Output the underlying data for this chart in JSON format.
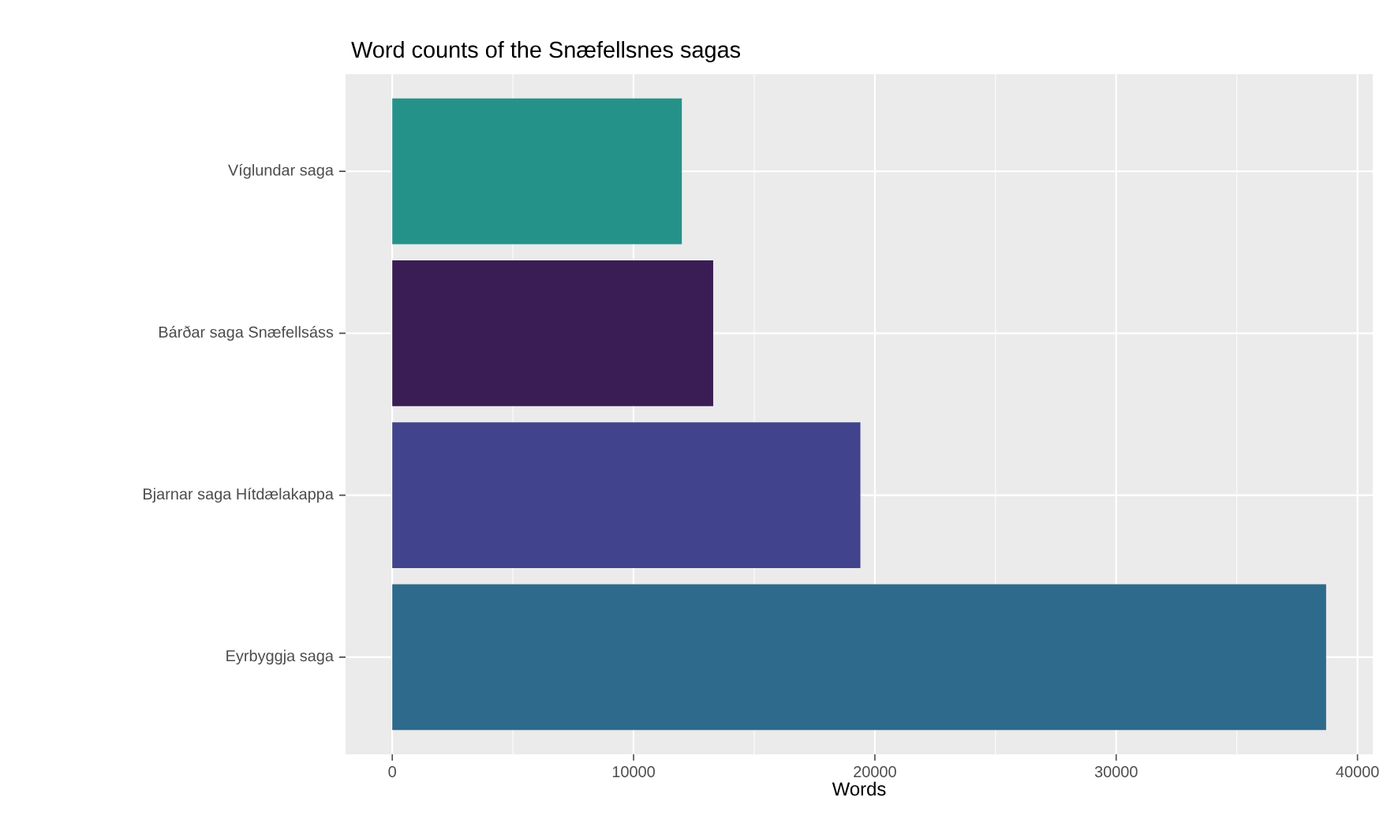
{
  "chart_data": {
    "type": "bar",
    "orientation": "horizontal",
    "title": "Word counts of the Snæfellsnes sagas",
    "xlabel": "Words",
    "categories": [
      "Víglundar saga",
      "Bárðar saga Snæfellsáss",
      "Bjarnar saga Hítdælakappa",
      "Eyrbyggja saga"
    ],
    "values": [
      12000,
      13300,
      19400,
      38700
    ],
    "colors": [
      "#25928a",
      "#3a1d55",
      "#41448c",
      "#2e6a8c"
    ],
    "xlim": [
      -1935,
      40635
    ],
    "xticks": [
      0,
      10000,
      20000,
      30000,
      40000
    ],
    "grid": true
  }
}
